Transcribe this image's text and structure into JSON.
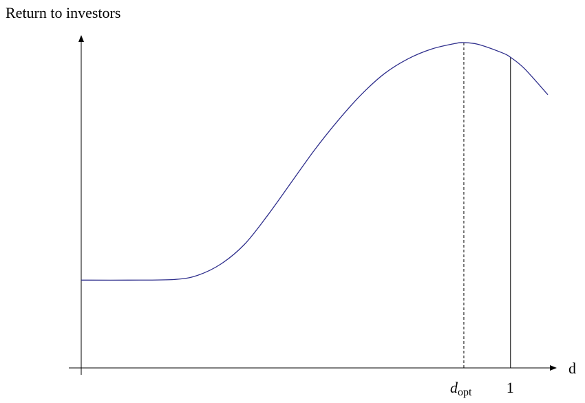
{
  "chart_data": {
    "type": "line",
    "ylabel": "Return to investors",
    "xlabel": "d",
    "x_ticks": [
      {
        "label_main": "d",
        "label_sub": "opt",
        "value": 0.82,
        "line_style": "dashed"
      },
      {
        "label_main": "1",
        "label_sub": "",
        "value": 0.92,
        "line_style": "solid"
      }
    ],
    "series": [
      {
        "color": "#2e2e8c",
        "x": [
          0.0,
          0.1,
          0.2,
          0.25,
          0.3,
          0.35,
          0.4,
          0.45,
          0.5,
          0.55,
          0.6,
          0.65,
          0.7,
          0.75,
          0.8,
          0.82,
          0.85,
          0.9,
          0.92,
          0.95,
          1.0
        ],
        "y": [
          0.27,
          0.27,
          0.272,
          0.285,
          0.32,
          0.38,
          0.47,
          0.57,
          0.67,
          0.76,
          0.84,
          0.905,
          0.95,
          0.98,
          0.997,
          1.0,
          0.995,
          0.97,
          0.955,
          0.92,
          0.84
        ]
      }
    ],
    "xlim": [
      0,
      1
    ],
    "ylim": [
      0,
      1
    ],
    "grid": false,
    "legend": "none"
  }
}
